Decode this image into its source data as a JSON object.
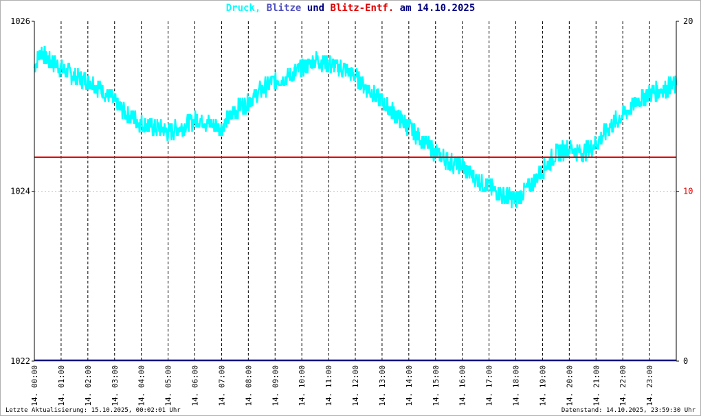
{
  "title": {
    "part_druck": "Druck,",
    "part_blitze": "Blitze",
    "part_und": "und",
    "part_entf": "Blitz-Entf.",
    "part_date": "am 14.10.2025"
  },
  "footer": {
    "left": "Letzte Aktualisierung: 15.10.2025, 00:02:01 Uhr",
    "right": "Datenstand: 14.10.2025, 23:59:30 Uhr"
  },
  "colors": {
    "druck": "#00ffff",
    "blitze": "#5050c0",
    "entf": "#e00000",
    "axis": "#000000",
    "grid": "#c0c0c0",
    "baseline": "#000080"
  },
  "chart_data": {
    "type": "line",
    "title": "Druck, Blitze und Blitz-Entf. am 14.10.2025",
    "x_tick_labels": [
      "14. 00:00",
      "14. 01:00",
      "14. 02:00",
      "14. 03:00",
      "14. 04:00",
      "14. 05:00",
      "14. 06:00",
      "14. 07:00",
      "14. 08:00",
      "14. 09:00",
      "14. 10:00",
      "14. 11:00",
      "14. 12:00",
      "14. 13:00",
      "14. 14:00",
      "14. 15:00",
      "14. 16:00",
      "14. 17:00",
      "14. 18:00",
      "14. 19:00",
      "14. 20:00",
      "14. 21:00",
      "14. 22:00",
      "14. 23:00"
    ],
    "x_range_hours": [
      0,
      24
    ],
    "y_left": {
      "ticks": [
        "1026",
        "1024",
        "1022"
      ],
      "range": [
        1022,
        1026
      ]
    },
    "y_right": {
      "ticks": [
        "20",
        "10",
        "0"
      ],
      "range": [
        0,
        20
      ]
    },
    "grid": "vertical dashed per hour, horizontal dotted at middle",
    "series": [
      {
        "name": "Druck",
        "axis": "left",
        "x_hours": [
          0,
          0.25,
          0.5,
          1,
          1.5,
          2,
          2.5,
          3,
          3.5,
          4,
          4.5,
          5,
          5.5,
          6,
          6.5,
          7,
          7.5,
          8,
          8.5,
          9,
          9.5,
          10,
          10.5,
          11,
          11.5,
          12,
          12.5,
          13,
          13.5,
          14,
          14.5,
          15,
          15.5,
          16,
          16.5,
          17,
          17.5,
          18,
          18.5,
          19,
          19.5,
          20,
          20.5,
          21,
          21.5,
          22,
          22.5,
          23,
          23.5,
          24
        ],
        "values": [
          1025.45,
          1025.65,
          1025.55,
          1025.45,
          1025.35,
          1025.3,
          1025.2,
          1025.05,
          1024.9,
          1024.8,
          1024.75,
          1024.7,
          1024.75,
          1024.85,
          1024.8,
          1024.75,
          1024.95,
          1025.05,
          1025.2,
          1025.3,
          1025.35,
          1025.45,
          1025.55,
          1025.5,
          1025.45,
          1025.35,
          1025.2,
          1025.05,
          1024.9,
          1024.75,
          1024.6,
          1024.45,
          1024.35,
          1024.3,
          1024.15,
          1024.05,
          1023.95,
          1023.9,
          1024.05,
          1024.25,
          1024.45,
          1024.5,
          1024.45,
          1024.55,
          1024.75,
          1024.9,
          1025.05,
          1025.15,
          1025.2,
          1025.25
        ]
      },
      {
        "name": "Blitze",
        "axis": "right",
        "x_hours": [
          0,
          24
        ],
        "values": [
          0,
          0
        ]
      },
      {
        "name": "Blitz-Entf.",
        "axis": "right",
        "x_hours": [
          0,
          24
        ],
        "values": [
          12,
          12
        ]
      }
    ]
  }
}
